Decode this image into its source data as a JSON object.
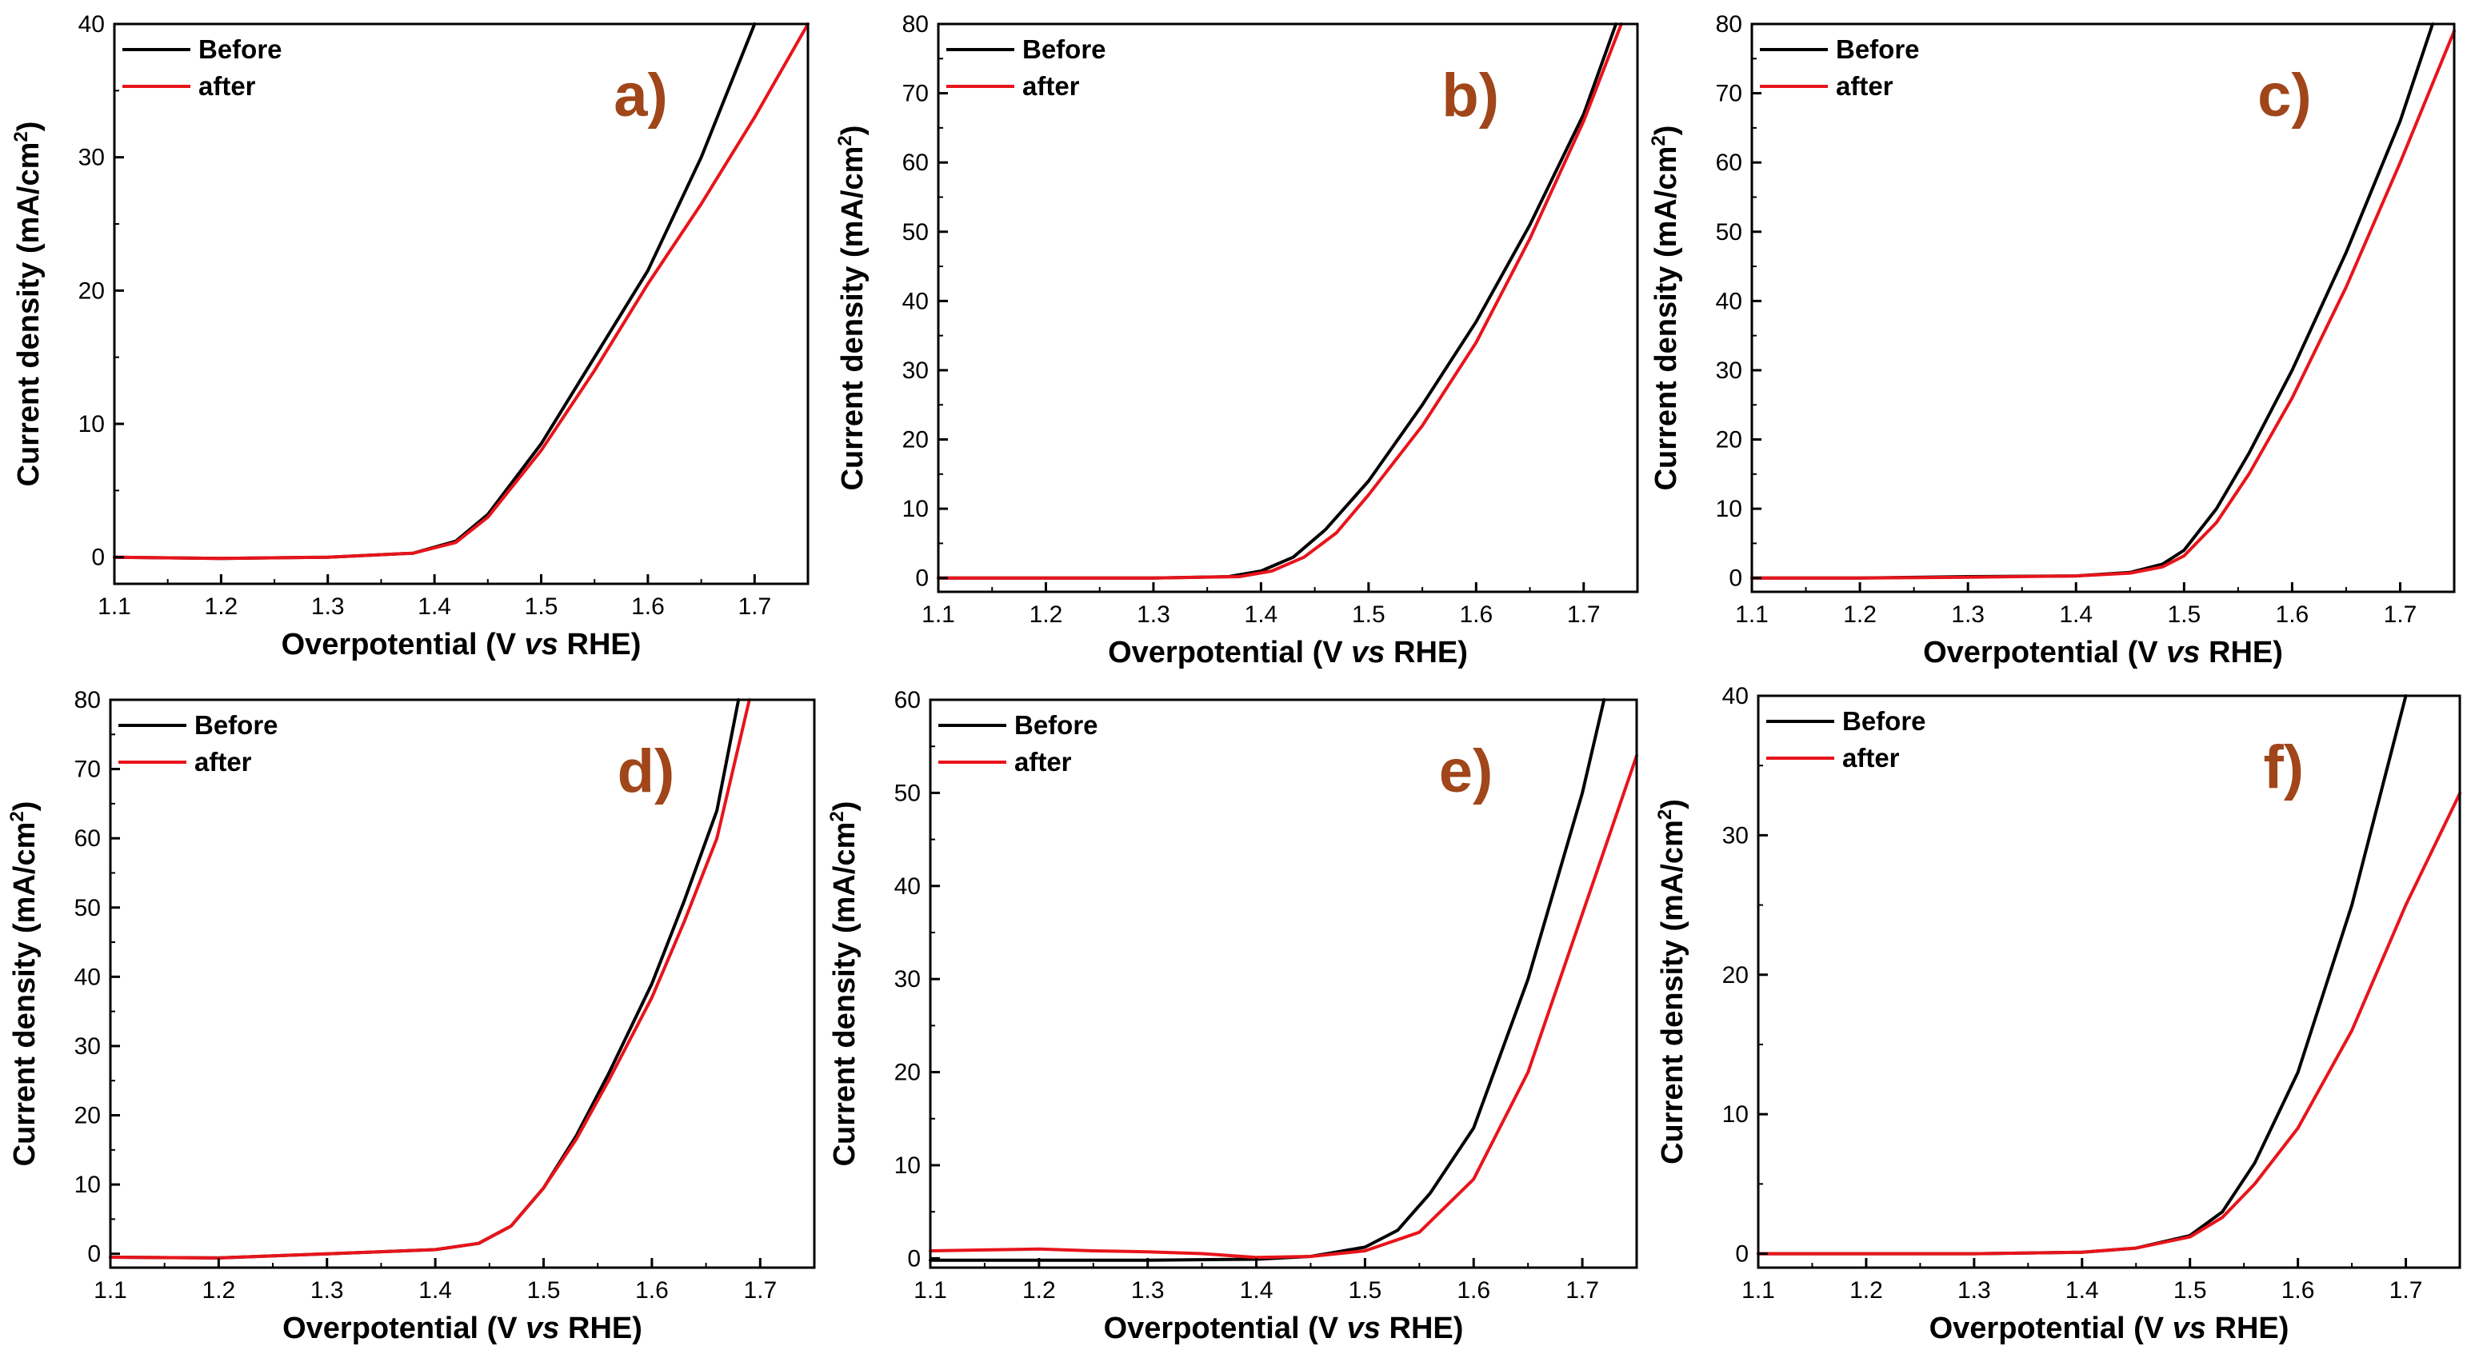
{
  "chart_data": [
    {
      "type": "line",
      "panel_label": "a)",
      "xlabel_main": "Overpotential (V ",
      "xlabel_italic": "vs",
      "xlabel_end": " RHE)",
      "ylabel_main": "Current density (mA/cm",
      "ylabel_sup": "2",
      "ylabel_end": ")",
      "xlim": [
        1.1,
        1.75
      ],
      "ylim": [
        -2,
        40
      ],
      "xticks": [
        "1.1",
        "1.2",
        "1.3",
        "1.4",
        "1.5",
        "1.6",
        "1.7"
      ],
      "yticks": [
        "0",
        "10",
        "20",
        "30",
        "40"
      ],
      "legend_position": "top-left",
      "series": [
        {
          "name": "Before",
          "color": "#000000",
          "x": [
            1.1,
            1.2,
            1.3,
            1.38,
            1.42,
            1.45,
            1.5,
            1.55,
            1.6,
            1.65,
            1.7
          ],
          "y": [
            0,
            -0.1,
            0,
            0.3,
            1.2,
            3.2,
            8.5,
            15,
            21.5,
            30,
            40
          ]
        },
        {
          "name": "after",
          "color": "#e8141b",
          "x": [
            1.1,
            1.2,
            1.3,
            1.38,
            1.42,
            1.45,
            1.5,
            1.55,
            1.6,
            1.65,
            1.7,
            1.75
          ],
          "y": [
            0,
            -0.1,
            0,
            0.3,
            1.1,
            3.0,
            8.0,
            14,
            20.5,
            26.5,
            33,
            40
          ]
        }
      ]
    },
    {
      "type": "line",
      "panel_label": "b)",
      "xlabel_main": "Overpotential (V ",
      "xlabel_italic": "vs",
      "xlabel_end": " RHE)",
      "ylabel_main": "Current density (mA/cm",
      "ylabel_sup": "2",
      "ylabel_end": ")",
      "xlim": [
        1.1,
        1.75
      ],
      "ylim": [
        -2,
        80
      ],
      "xticks": [
        "1.1",
        "1.2",
        "1.3",
        "1.4",
        "1.5",
        "1.6",
        "1.7"
      ],
      "yticks": [
        "0",
        "10",
        "20",
        "30",
        "40",
        "50",
        "60",
        "70",
        "80"
      ],
      "legend_position": "top-left",
      "series": [
        {
          "name": "Before",
          "color": "#000000",
          "x": [
            1.1,
            1.2,
            1.3,
            1.37,
            1.4,
            1.43,
            1.46,
            1.5,
            1.55,
            1.6,
            1.65,
            1.7,
            1.73
          ],
          "y": [
            0,
            0,
            0,
            0.2,
            1,
            3,
            7,
            14,
            25,
            37,
            51,
            67,
            80
          ]
        },
        {
          "name": "after",
          "color": "#e8141b",
          "x": [
            1.1,
            1.2,
            1.3,
            1.38,
            1.41,
            1.44,
            1.47,
            1.5,
            1.55,
            1.6,
            1.65,
            1.7,
            1.735
          ],
          "y": [
            0,
            0,
            0,
            0.2,
            1,
            3,
            6.5,
            12,
            22,
            34,
            49,
            66,
            80
          ]
        }
      ]
    },
    {
      "type": "line",
      "panel_label": "c)",
      "xlabel_main": "Overpotential (V ",
      "xlabel_italic": "vs",
      "xlabel_end": " RHE)",
      "ylabel_main": "Current density (mA/cm",
      "ylabel_sup": "2",
      "ylabel_end": ")",
      "xlim": [
        1.1,
        1.75
      ],
      "ylim": [
        -2,
        80
      ],
      "xticks": [
        "1.1",
        "1.2",
        "1.3",
        "1.4",
        "1.5",
        "1.6",
        "1.7"
      ],
      "yticks": [
        "0",
        "10",
        "20",
        "30",
        "40",
        "50",
        "60",
        "70",
        "80"
      ],
      "legend_position": "top-left",
      "series": [
        {
          "name": "Before",
          "color": "#000000",
          "x": [
            1.1,
            1.2,
            1.3,
            1.4,
            1.45,
            1.48,
            1.5,
            1.53,
            1.56,
            1.6,
            1.65,
            1.7,
            1.73
          ],
          "y": [
            0,
            0,
            0.2,
            0.3,
            0.8,
            2,
            4,
            10,
            18,
            30,
            47,
            66,
            80
          ]
        },
        {
          "name": "after",
          "color": "#e8141b",
          "x": [
            1.1,
            1.2,
            1.3,
            1.4,
            1.45,
            1.48,
            1.5,
            1.53,
            1.56,
            1.6,
            1.65,
            1.7,
            1.75
          ],
          "y": [
            0,
            0,
            0.1,
            0.3,
            0.7,
            1.6,
            3.2,
            8,
            15,
            26,
            42,
            60,
            79
          ]
        }
      ]
    },
    {
      "type": "line",
      "panel_label": "d)",
      "xlabel_main": "Overpotential (V ",
      "xlabel_italic": "vs",
      "xlabel_end": " RHE)",
      "ylabel_main": "Current density (mA/cm",
      "ylabel_sup": "2",
      "ylabel_end": ")",
      "xlim": [
        1.1,
        1.75
      ],
      "ylim": [
        -2,
        80
      ],
      "xticks": [
        "1.1",
        "1.2",
        "1.3",
        "1.4",
        "1.5",
        "1.6",
        "1.7"
      ],
      "yticks": [
        "0",
        "10",
        "20",
        "30",
        "40",
        "50",
        "60",
        "70",
        "80"
      ],
      "legend_position": "top-left",
      "series": [
        {
          "name": "Before",
          "color": "#000000",
          "x": [
            1.1,
            1.2,
            1.3,
            1.4,
            1.44,
            1.47,
            1.5,
            1.53,
            1.56,
            1.6,
            1.63,
            1.66,
            1.68
          ],
          "y": [
            -0.5,
            -0.6,
            0,
            0.6,
            1.5,
            4,
            9.5,
            17,
            26,
            39,
            51,
            64,
            80
          ]
        },
        {
          "name": "after",
          "color": "#e8141b",
          "x": [
            1.1,
            1.2,
            1.3,
            1.4,
            1.44,
            1.47,
            1.5,
            1.53,
            1.56,
            1.6,
            1.63,
            1.66,
            1.69
          ],
          "y": [
            -0.5,
            -0.6,
            0,
            0.6,
            1.5,
            4,
            9.5,
            16.5,
            25,
            37,
            48,
            60,
            80
          ]
        }
      ]
    },
    {
      "type": "line",
      "panel_label": "e)",
      "xlabel_main": "Overpotential (V ",
      "xlabel_italic": "vs",
      "xlabel_end": " RHE)",
      "ylabel_main": "Current density (mA/cm",
      "ylabel_sup": "2",
      "ylabel_end": ")",
      "xlim": [
        1.1,
        1.75
      ],
      "ylim": [
        -1,
        60
      ],
      "xticks": [
        "1.1",
        "1.2",
        "1.3",
        "1.4",
        "1.5",
        "1.6",
        "1.7"
      ],
      "yticks": [
        "0",
        "10",
        "20",
        "30",
        "40",
        "50",
        "60"
      ],
      "legend_position": "top-left",
      "series": [
        {
          "name": "Before",
          "color": "#000000",
          "x": [
            1.1,
            1.2,
            1.3,
            1.4,
            1.45,
            1.5,
            1.53,
            1.56,
            1.6,
            1.65,
            1.7,
            1.72
          ],
          "y": [
            -0.2,
            -0.2,
            -0.2,
            -0.1,
            0.2,
            1.2,
            3,
            7,
            14,
            30,
            50,
            60
          ]
        },
        {
          "name": "after",
          "color": "#e8141b",
          "x": [
            1.1,
            1.15,
            1.2,
            1.25,
            1.3,
            1.35,
            1.4,
            1.45,
            1.5,
            1.55,
            1.6,
            1.65,
            1.7,
            1.75
          ],
          "y": [
            0.8,
            0.9,
            1.0,
            0.8,
            0.7,
            0.5,
            0.1,
            0.2,
            0.8,
            2.8,
            8.5,
            20,
            37,
            54
          ]
        }
      ]
    },
    {
      "type": "line",
      "panel_label": "f)",
      "xlabel_main": "Overpotential (V ",
      "xlabel_italic": "vs",
      "xlabel_end": " RHE)",
      "ylabel_main": "Current density (mA/cm",
      "ylabel_sup": "2",
      "ylabel_end": ")",
      "xlim": [
        1.1,
        1.75
      ],
      "ylim": [
        -1,
        40
      ],
      "xticks": [
        "1.1",
        "1.2",
        "1.3",
        "1.4",
        "1.5",
        "1.6",
        "1.7"
      ],
      "yticks": [
        "0",
        "10",
        "20",
        "30",
        "40"
      ],
      "legend_position": "top-left",
      "series": [
        {
          "name": "Before",
          "color": "#000000",
          "x": [
            1.1,
            1.2,
            1.3,
            1.4,
            1.45,
            1.5,
            1.53,
            1.56,
            1.6,
            1.65,
            1.7
          ],
          "y": [
            0,
            0,
            0,
            0.1,
            0.4,
            1.3,
            3,
            6.5,
            13,
            25,
            40
          ]
        },
        {
          "name": "after",
          "color": "#e8141b",
          "x": [
            1.1,
            1.2,
            1.3,
            1.4,
            1.45,
            1.5,
            1.53,
            1.56,
            1.6,
            1.65,
            1.7,
            1.75
          ],
          "y": [
            0,
            0,
            0,
            0.1,
            0.4,
            1.2,
            2.6,
            5,
            9,
            16,
            25,
            33
          ]
        }
      ]
    }
  ],
  "colors": {
    "axis": "#000000",
    "panel_letter": "#a0461a"
  }
}
